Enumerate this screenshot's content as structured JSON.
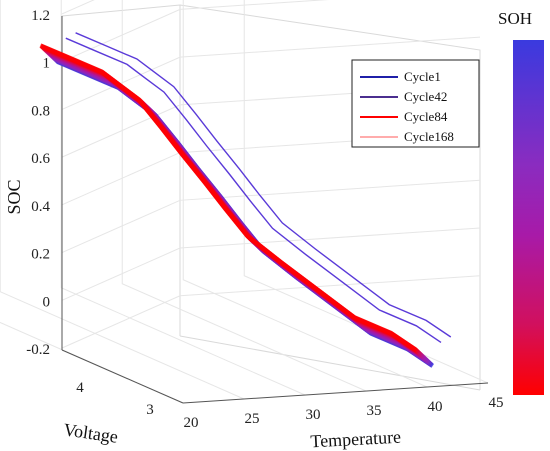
{
  "chart_data": {
    "type": "line",
    "title": "",
    "xlabel": "Temperature",
    "ylabel": "Voltage",
    "zlabel": "SOC",
    "x_ticks": [
      "20",
      "25",
      "30",
      "35",
      "40",
      "45"
    ],
    "y_ticks": [
      "3",
      "4"
    ],
    "z_ticks": [
      "-0.2",
      "0",
      "0.2",
      "0.4",
      "0.6",
      "0.8",
      "1",
      "1.2"
    ],
    "xlim": [
      20,
      45
    ],
    "ylim": [
      2.5,
      4.3
    ],
    "zlim": [
      -0.2,
      1.2
    ],
    "grid": true,
    "legend_position": "top-right",
    "colorbar": {
      "title": "SOH",
      "colors": [
        "#3a3adf",
        "#8a2cc0",
        "#a81aa8",
        "#d1105e",
        "#ff0000"
      ]
    },
    "series": [
      {
        "name": "Cycle1",
        "color": "#1f1fa8",
        "cycle": 1
      },
      {
        "name": "Cycle42",
        "color": "#4b2f8f",
        "cycle": 42
      },
      {
        "name": "Cycle84",
        "color": "#ff0000",
        "cycle": 84
      },
      {
        "name": "Cycle168",
        "color": "#ff5a5a",
        "cycle": 168
      }
    ],
    "curve_profile": {
      "soc": [
        1.0,
        0.95,
        0.9,
        0.85,
        0.8,
        0.7,
        0.6,
        0.5,
        0.4,
        0.3,
        0.2,
        0.1,
        0.0,
        -0.05,
        -0.1
      ],
      "temperature": [
        21,
        23,
        25,
        26,
        27,
        28,
        29,
        30,
        31,
        32,
        34,
        36,
        38,
        40,
        41
      ],
      "voltage": [
        4.2,
        4.15,
        4.1,
        4.05,
        4.0,
        3.92,
        3.85,
        3.77,
        3.7,
        3.62,
        3.55,
        3.45,
        3.35,
        3.25,
        3.15
      ]
    }
  }
}
